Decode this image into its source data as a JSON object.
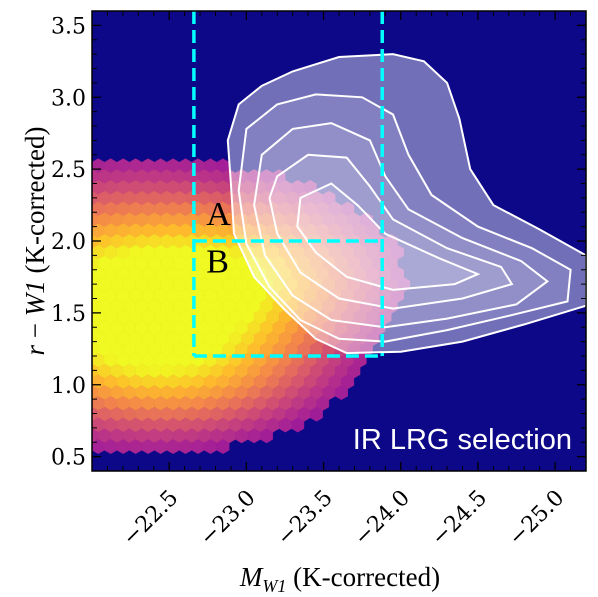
{
  "chart_data": {
    "type": "heatmap",
    "title": "",
    "xlabel_main": "M",
    "xlabel_sub": "W1",
    "xlabel_suffix": " (K-corrected)",
    "ylabel_r": "r",
    "ylabel_minus": " − ",
    "ylabel_w": "W1",
    "ylabel_suffix": " (K-corrected)",
    "xlim": [
      -22.0,
      -25.2
    ],
    "ylim": [
      0.4,
      3.6
    ],
    "x_ticks": [
      -22.5,
      -23.0,
      -23.5,
      -24.0,
      -24.5,
      -25.0
    ],
    "x_tick_labels": [
      "−22.5",
      "−23.0",
      "−23.5",
      "−24.0",
      "−24.5",
      "−25.0"
    ],
    "y_ticks": [
      0.5,
      1.0,
      1.5,
      2.0,
      2.5,
      3.0,
      3.5
    ],
    "y_tick_labels": [
      "0.5",
      "1.0",
      "1.5",
      "2.0",
      "2.5",
      "3.0",
      "3.5"
    ],
    "background_color": "#0d0887",
    "colormap": "plasma",
    "selection_box_color": "#00ffff",
    "contour_color": "#ffffff",
    "contour_fill_color": "#ffffff",
    "selection_lines": [
      {
        "name": "vertical-left",
        "x": [
          -22.66,
          -22.66
        ],
        "y": [
          3.6,
          1.2
        ]
      },
      {
        "name": "vertical-right",
        "x": [
          -23.88,
          -23.88
        ],
        "y": [
          3.6,
          1.2
        ]
      },
      {
        "name": "horizontal-bottom",
        "x": [
          -22.66,
          -23.88
        ],
        "y": [
          1.2,
          1.2
        ]
      },
      {
        "name": "horizontal-middle",
        "x": [
          -22.66,
          -23.88
        ],
        "y": [
          2.0,
          2.0
        ]
      }
    ],
    "region_labels": [
      {
        "text": "A",
        "x": -22.74,
        "y": 2.11
      },
      {
        "text": "B",
        "x": -22.74,
        "y": 1.78
      }
    ],
    "annotation": "IR LRG selection",
    "hexbin_density": {
      "description_components": [
        {
          "cx": -22.25,
          "cy": 1.58,
          "sx": 0.62,
          "sy": 0.42,
          "weight": 1.0
        },
        {
          "cx": -23.05,
          "cy": 1.75,
          "sx": 0.45,
          "sy": 0.3,
          "weight": 0.45
        },
        {
          "cx": -22.6,
          "cy": 1.1,
          "sx": 0.5,
          "sy": 0.25,
          "weight": 0.3
        }
      ]
    },
    "contours": [
      {
        "level": 1,
        "points": [
          [
            -22.95,
            2.95
          ],
          [
            -23.1,
            3.08
          ],
          [
            -23.3,
            3.18
          ],
          [
            -23.6,
            3.28
          ],
          [
            -23.95,
            3.3
          ],
          [
            -24.15,
            3.25
          ],
          [
            -24.3,
            3.1
          ],
          [
            -24.38,
            2.85
          ],
          [
            -24.45,
            2.5
          ],
          [
            -24.6,
            2.25
          ],
          [
            -24.9,
            2.08
          ],
          [
            -25.2,
            1.9
          ],
          [
            -25.2,
            1.55
          ],
          [
            -24.8,
            1.42
          ],
          [
            -24.4,
            1.3
          ],
          [
            -24.0,
            1.23
          ],
          [
            -23.65,
            1.22
          ],
          [
            -23.45,
            1.32
          ],
          [
            -23.25,
            1.52
          ],
          [
            -23.05,
            1.75
          ],
          [
            -22.92,
            2.05
          ],
          [
            -22.9,
            2.4
          ],
          [
            -22.88,
            2.7
          ]
        ]
      },
      {
        "level": 2,
        "points": [
          [
            -23.0,
            2.78
          ],
          [
            -23.2,
            2.95
          ],
          [
            -23.45,
            3.02
          ],
          [
            -23.75,
            3.0
          ],
          [
            -23.95,
            2.88
          ],
          [
            -24.05,
            2.6
          ],
          [
            -24.2,
            2.32
          ],
          [
            -24.5,
            2.1
          ],
          [
            -24.85,
            1.95
          ],
          [
            -25.1,
            1.8
          ],
          [
            -25.08,
            1.58
          ],
          [
            -24.7,
            1.48
          ],
          [
            -24.3,
            1.38
          ],
          [
            -23.9,
            1.3
          ],
          [
            -23.6,
            1.32
          ],
          [
            -23.35,
            1.45
          ],
          [
            -23.15,
            1.68
          ],
          [
            -23.0,
            1.98
          ],
          [
            -22.95,
            2.35
          ]
        ]
      },
      {
        "level": 3,
        "points": [
          [
            -23.1,
            2.6
          ],
          [
            -23.3,
            2.78
          ],
          [
            -23.55,
            2.82
          ],
          [
            -23.8,
            2.7
          ],
          [
            -23.9,
            2.45
          ],
          [
            -24.05,
            2.22
          ],
          [
            -24.4,
            2.02
          ],
          [
            -24.78,
            1.86
          ],
          [
            -24.95,
            1.72
          ],
          [
            -24.75,
            1.56
          ],
          [
            -24.3,
            1.46
          ],
          [
            -23.9,
            1.4
          ],
          [
            -23.55,
            1.45
          ],
          [
            -23.3,
            1.62
          ],
          [
            -23.12,
            1.9
          ],
          [
            -23.05,
            2.25
          ]
        ]
      },
      {
        "level": 4,
        "points": [
          [
            -23.2,
            2.45
          ],
          [
            -23.4,
            2.6
          ],
          [
            -23.65,
            2.58
          ],
          [
            -23.8,
            2.38
          ],
          [
            -23.95,
            2.15
          ],
          [
            -24.3,
            1.95
          ],
          [
            -24.65,
            1.82
          ],
          [
            -24.72,
            1.7
          ],
          [
            -24.4,
            1.6
          ],
          [
            -23.95,
            1.53
          ],
          [
            -23.6,
            1.6
          ],
          [
            -23.35,
            1.78
          ],
          [
            -23.2,
            2.05
          ],
          [
            -23.15,
            2.3
          ]
        ]
      },
      {
        "level": 5,
        "points": [
          [
            -23.35,
            2.3
          ],
          [
            -23.55,
            2.4
          ],
          [
            -23.72,
            2.25
          ],
          [
            -23.9,
            2.05
          ],
          [
            -24.25,
            1.88
          ],
          [
            -24.5,
            1.77
          ],
          [
            -24.35,
            1.7
          ],
          [
            -23.95,
            1.66
          ],
          [
            -23.65,
            1.75
          ],
          [
            -23.45,
            1.92
          ],
          [
            -23.33,
            2.1
          ]
        ]
      }
    ]
  },
  "labels": {
    "region_a": "A",
    "region_b": "B",
    "annotation": "IR LRG selection"
  }
}
